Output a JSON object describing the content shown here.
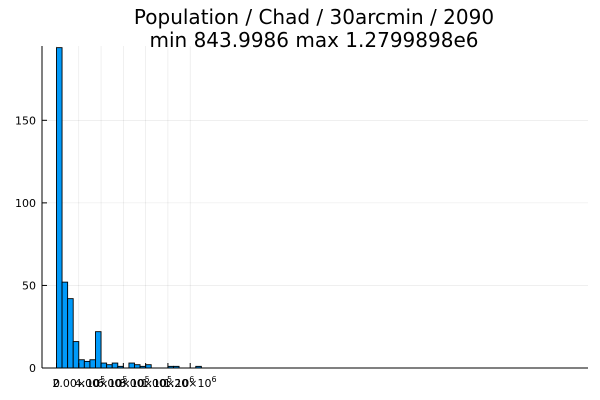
{
  "chart_data": {
    "type": "bar",
    "title_line1": "Population / Chad / 30arcmin / 2090",
    "title_line2": "min 843.9986  max 1.2799898e6",
    "bar_color": "#009AFA",
    "grid": true,
    "legend": "none",
    "xlim": [
      -130000,
      2320000
    ],
    "ylim": [
      0,
      195
    ],
    "y_ticks": [
      {
        "value": 0,
        "label": "0"
      },
      {
        "value": 50,
        "label": "50"
      },
      {
        "value": 100,
        "label": "100"
      },
      {
        "value": 150,
        "label": "150"
      }
    ],
    "x_ticks": [
      {
        "value": 0,
        "mantissa": "0",
        "exponent": ""
      },
      {
        "value": 200000,
        "mantissa": "2.00×10",
        "exponent": "5"
      },
      {
        "value": 400000,
        "mantissa": "4.00×10",
        "exponent": "5"
      },
      {
        "value": 600000,
        "mantissa": "6.00×10",
        "exponent": "5"
      },
      {
        "value": 800000,
        "mantissa": "8.00×10",
        "exponent": "5"
      },
      {
        "value": 1000000,
        "mantissa": "1.00×10",
        "exponent": "6"
      },
      {
        "value": 1200000,
        "mantissa": "1.20×10",
        "exponent": "6"
      }
    ],
    "bin_width": 50000,
    "bins": [
      {
        "start": 0,
        "count": 194
      },
      {
        "start": 50000,
        "count": 52
      },
      {
        "start": 100000,
        "count": 42
      },
      {
        "start": 150000,
        "count": 16
      },
      {
        "start": 200000,
        "count": 5
      },
      {
        "start": 250000,
        "count": 4
      },
      {
        "start": 300000,
        "count": 5
      },
      {
        "start": 350000,
        "count": 22
      },
      {
        "start": 400000,
        "count": 3
      },
      {
        "start": 450000,
        "count": 2
      },
      {
        "start": 500000,
        "count": 3
      },
      {
        "start": 550000,
        "count": 1
      },
      {
        "start": 650000,
        "count": 3
      },
      {
        "start": 700000,
        "count": 2
      },
      {
        "start": 750000,
        "count": 1
      },
      {
        "start": 800000,
        "count": 2
      },
      {
        "start": 1000000,
        "count": 1
      },
      {
        "start": 1050000,
        "count": 1
      },
      {
        "start": 1250000,
        "count": 1
      }
    ]
  }
}
